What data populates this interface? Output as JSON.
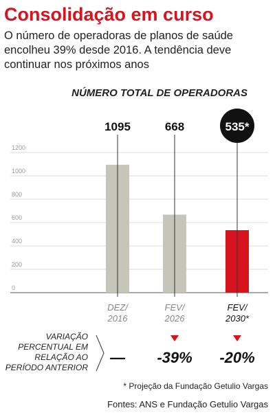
{
  "chart_data": {
    "type": "bar",
    "title": "Consolidação em curso",
    "subtitle": [
      "O número de operadoras de planos de saúde",
      "encolheu 39% desde 2016. A tendência deve",
      "continuar nos próximos anos"
    ],
    "chart_title": "NÚMERO TOTAL DE OPERADORAS",
    "categories": [
      "DEZ/ 2016",
      "FEV/ 2026",
      "FEV/ 2030*"
    ],
    "values": [
      1095,
      668,
      535
    ],
    "value_labels": [
      "1095",
      "668",
      "535*"
    ],
    "colors": [
      "#c5c5b9",
      "#c5c5b9",
      "#d7141d"
    ],
    "ylim": [
      0,
      1200
    ],
    "yticks": [
      0,
      200,
      400,
      600,
      800,
      1000,
      1200
    ],
    "grid": true,
    "variation_label": [
      "VARIAÇÃO",
      "PERCENTUAL EM",
      "RELAÇÃO AO",
      "PERÍODO ANTERIOR"
    ],
    "variation": [
      "—",
      "-39%",
      "-20%"
    ],
    "footnote": "* Projeção da Fundação Getulio Vargas",
    "source": "Fontes: ANS e Fundação Getulio Vargas"
  }
}
